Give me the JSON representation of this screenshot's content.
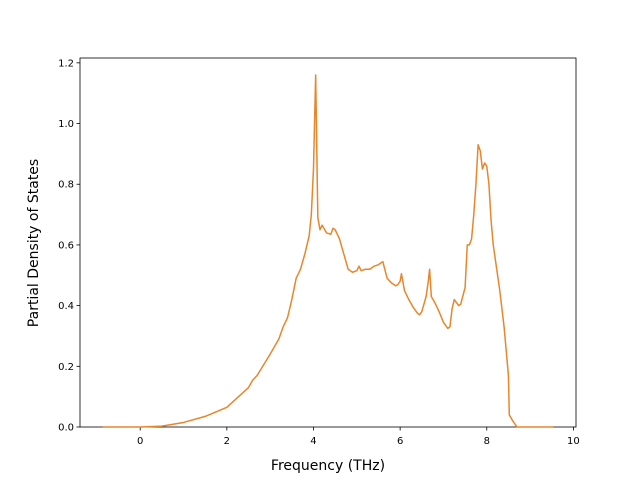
{
  "chart_data": {
    "type": "line",
    "x_label": "Frequency (THz)",
    "y_label": "Partial Density of States",
    "x": [
      -0.87,
      0,
      0.5,
      1,
      1.5,
      2,
      2.5,
      2.6,
      2.7,
      3,
      3.2,
      3.3,
      3.4,
      3.5,
      3.6,
      3.7,
      3.8,
      3.9,
      3.95,
      4.0,
      4.05,
      4.1,
      4.15,
      4.2,
      4.3,
      4.4,
      4.45,
      4.5,
      4.6,
      4.7,
      4.8,
      4.9,
      5.0,
      5.05,
      5.1,
      5.2,
      5.3,
      5.4,
      5.5,
      5.6,
      5.7,
      5.8,
      5.9,
      5.95,
      6.0,
      6.03,
      6.1,
      6.2,
      6.3,
      6.4,
      6.45,
      6.5,
      6.6,
      6.65,
      6.68,
      6.72,
      6.8,
      6.9,
      7.0,
      7.1,
      7.15,
      7.2,
      7.25,
      7.3,
      7.35,
      7.4,
      7.5,
      7.55,
      7.6,
      7.65,
      7.7,
      7.75,
      7.8,
      7.85,
      7.9,
      7.95,
      8.0,
      8.05,
      8.1,
      8.15,
      8.2,
      8.3,
      8.4,
      8.5,
      8.52,
      8.6,
      8.7,
      9.54
    ],
    "series": [
      {
        "color": "#e8862c",
        "values": [
          0,
          0,
          0.003,
          0.015,
          0.035,
          0.065,
          0.13,
          0.155,
          0.17,
          0.24,
          0.29,
          0.33,
          0.36,
          0.42,
          0.49,
          0.52,
          0.57,
          0.63,
          0.7,
          0.85,
          1.16,
          0.69,
          0.65,
          0.665,
          0.64,
          0.635,
          0.655,
          0.65,
          0.62,
          0.57,
          0.52,
          0.51,
          0.515,
          0.53,
          0.515,
          0.52,
          0.52,
          0.53,
          0.535,
          0.545,
          0.49,
          0.475,
          0.465,
          0.47,
          0.48,
          0.505,
          0.45,
          0.42,
          0.395,
          0.375,
          0.37,
          0.38,
          0.43,
          0.48,
          0.52,
          0.43,
          0.41,
          0.38,
          0.345,
          0.325,
          0.33,
          0.39,
          0.42,
          0.41,
          0.4,
          0.405,
          0.46,
          0.6,
          0.6,
          0.62,
          0.7,
          0.8,
          0.93,
          0.91,
          0.85,
          0.87,
          0.86,
          0.8,
          0.68,
          0.6,
          0.55,
          0.45,
          0.33,
          0.17,
          0.04,
          0.02,
          0,
          0
        ]
      }
    ],
    "xlim": [
      -1.39,
      10.06
    ],
    "xticks": [
      0,
      2,
      4,
      6,
      8,
      10
    ],
    "ylim": [
      0,
      1.216
    ],
    "yticks": [
      {
        "value": 0,
        "label": "0.0"
      },
      0.2,
      0.4,
      0.6,
      0.8,
      {
        "value": 1,
        "label": "1.0"
      },
      1.2
    ]
  }
}
